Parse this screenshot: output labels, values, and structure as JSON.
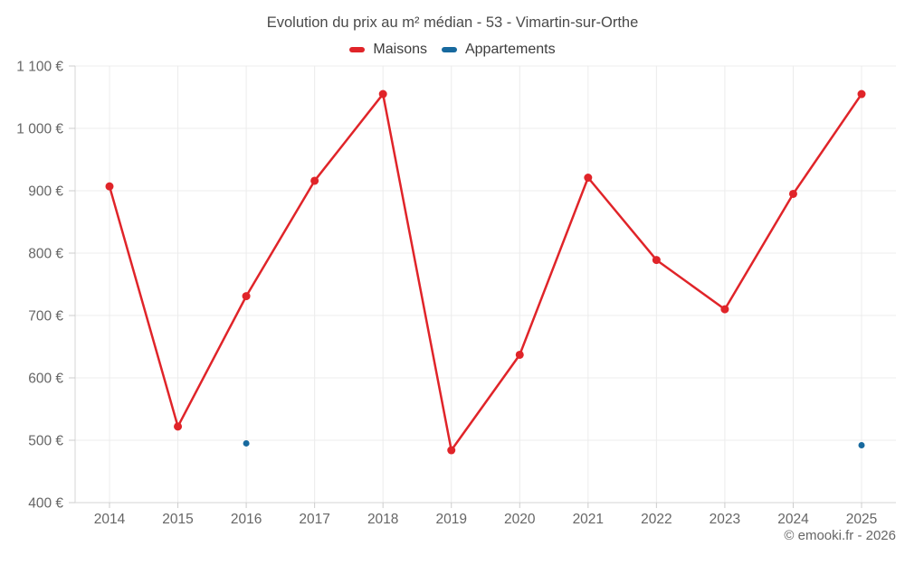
{
  "header": {
    "title": "Evolution du prix au m² médian - 53 - Vimartin-sur-Orthe"
  },
  "footer": {
    "credit": "© emooki.fr - 2026"
  },
  "chart_data": {
    "type": "line",
    "title": "Evolution du prix au m² médian - 53 - Vimartin-sur-Orthe",
    "xlabel": "",
    "ylabel": "",
    "categories": [
      "2014",
      "2015",
      "2016",
      "2017",
      "2018",
      "2019",
      "2020",
      "2021",
      "2022",
      "2023",
      "2024",
      "2025"
    ],
    "series": [
      {
        "name": "Maisons",
        "color": "#e02429",
        "draw_line": true,
        "marker_radius": 4.5,
        "values": [
          907,
          522,
          731,
          916,
          1055,
          484,
          637,
          921,
          789,
          710,
          895,
          1055
        ]
      },
      {
        "name": "Appartements",
        "color": "#17699e",
        "draw_line": false,
        "marker_radius": 3.5,
        "values": [
          null,
          null,
          495,
          null,
          null,
          null,
          null,
          null,
          null,
          null,
          null,
          492
        ]
      }
    ],
    "ylim": [
      400,
      1100
    ],
    "ytick_step": 100,
    "ytick_suffix": " €",
    "grid": true,
    "legend_position": "top"
  },
  "style": {
    "background": "#ffffff",
    "grid_color": "#ececec",
    "axis_color": "#d6d6d6",
    "tick_color": "#cccccc",
    "label_color": "#666666",
    "title_color": "#4a4a4a",
    "legend_text_color": "#3d3d3d"
  }
}
